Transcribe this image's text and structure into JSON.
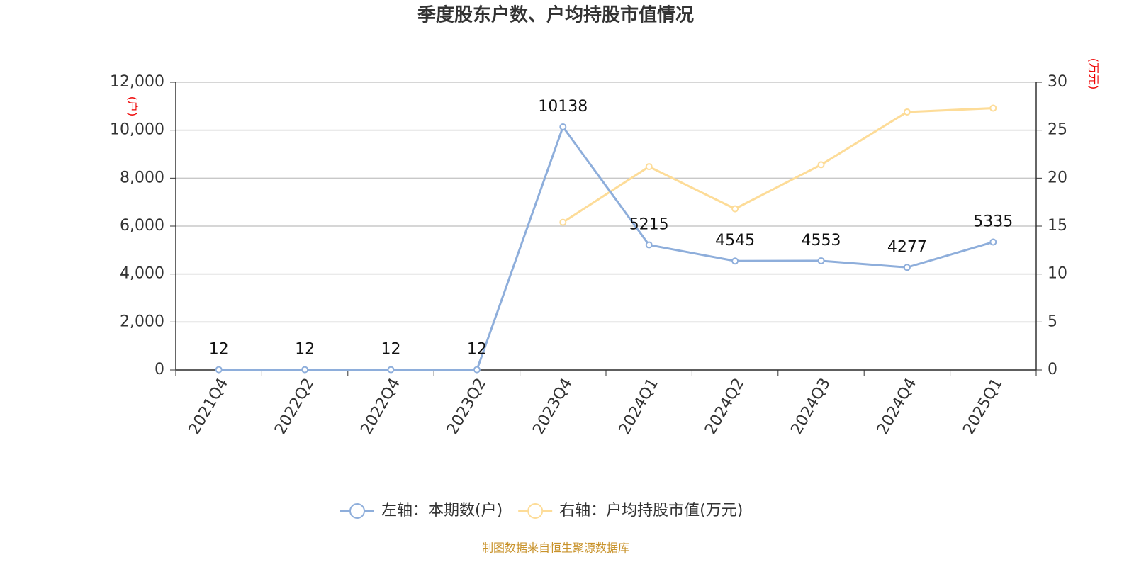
{
  "chart_data": {
    "type": "line",
    "title": "季度股东户数、户均持股市值情况",
    "y_label": "(户)",
    "y2_label": "(万元)",
    "categories": [
      "2021Q4",
      "2022Q2",
      "2022Q4",
      "2023Q2",
      "2023Q4",
      "2024Q1",
      "2024Q2",
      "2024Q3",
      "2024Q4",
      "2025Q1"
    ],
    "series": [
      {
        "name": "左轴：本期数(户)",
        "color": "#8eaedb",
        "values": [
          12,
          12,
          12,
          12,
          10138,
          5215,
          4545,
          4553,
          4277,
          5335
        ],
        "data_labels": true
      },
      {
        "name": "右轴：户均持股市值(万元)",
        "color": "#fddc98",
        "axis": "y2",
        "values": [
          null,
          null,
          null,
          null,
          15.4,
          21.2,
          16.8,
          21.4,
          26.9,
          27.3
        ],
        "data_labels": false
      }
    ],
    "ylim": [
      0,
      12000
    ],
    "yticks": [
      0,
      {
        "value": 2000,
        "label": "2,000"
      },
      {
        "value": 4000,
        "label": "4,000"
      },
      {
        "value": 6000,
        "label": "6,000"
      },
      {
        "value": 8000,
        "label": "8,000"
      },
      {
        "value": 10000,
        "label": "10,000"
      },
      {
        "value": 12000,
        "label": "12,000"
      }
    ],
    "y2lim": [
      0,
      30
    ],
    "y2ticks": [
      0,
      5,
      10,
      15,
      20,
      25,
      30
    ],
    "grid": true,
    "legend": "bottom",
    "source": "制图数据来自恒生聚源数据库"
  }
}
